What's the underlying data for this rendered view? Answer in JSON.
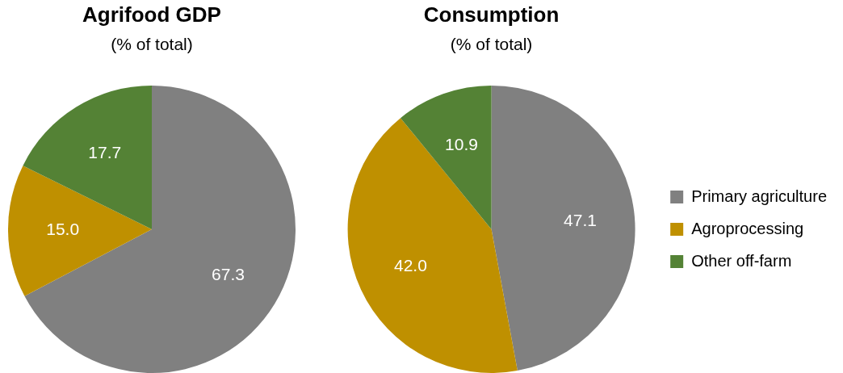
{
  "chart_data": [
    {
      "type": "pie",
      "title": "Agrifood GDP",
      "subtitle": "(% of total)",
      "categories": [
        null,
        null,
        null
      ],
      "values": [
        67.3,
        15.0,
        17.7
      ],
      "value_labels": [
        "67.3",
        "15.0",
        "17.7"
      ],
      "colors": [
        "#808080",
        "#bf9000",
        "#548235"
      ],
      "legend": false
    },
    {
      "type": "pie",
      "title": "Consumption",
      "subtitle": "(% of total)",
      "categories": [
        "Primary agriculture",
        "Agroprocessing",
        "Other off-farm"
      ],
      "values": [
        47.1,
        42.0,
        10.9
      ],
      "value_labels": [
        "47.1",
        "42.0",
        "10.9"
      ],
      "colors": [
        "#808080",
        "#bf9000",
        "#548235"
      ],
      "legend": "right"
    }
  ]
}
